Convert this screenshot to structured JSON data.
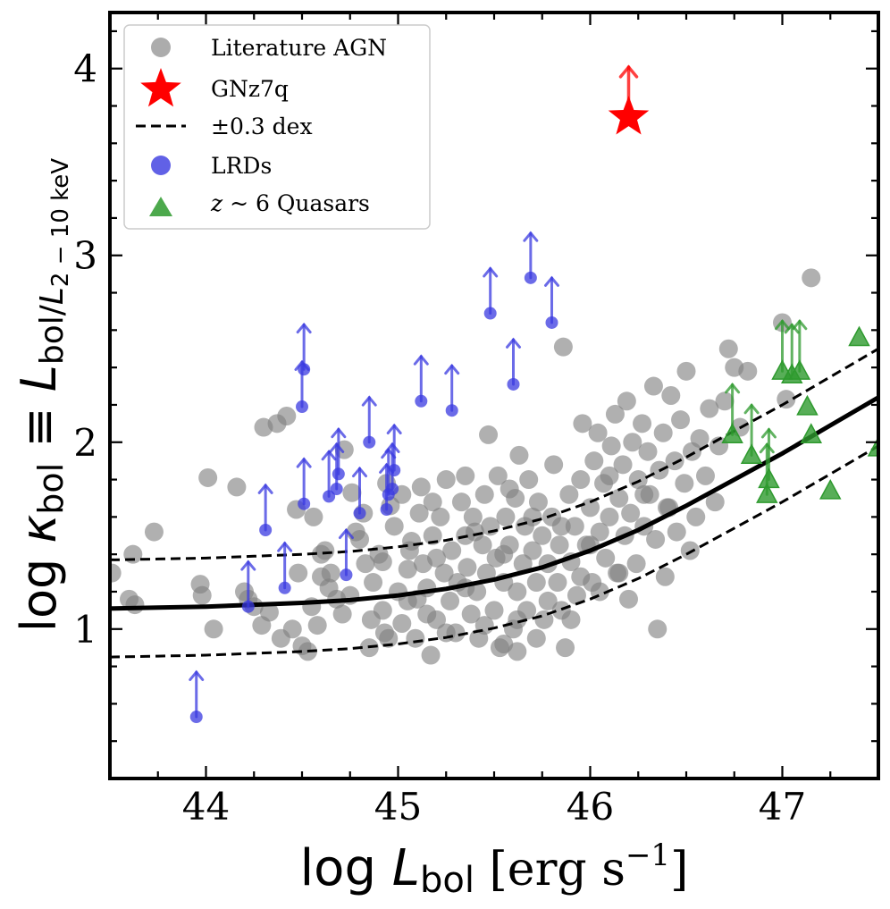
{
  "chart_data": {
    "type": "scatter",
    "xlabel": {
      "prefix": "log ",
      "var": "L",
      "sub": "bol",
      "units": " [erg s",
      "exp": "−1",
      "close": "]"
    },
    "ylabel": {
      "prefix": "log ",
      "var": "κ",
      "sub": "bol",
      "equiv": " ≡ ",
      "rvar": "L",
      "rsub": "bol/",
      "rsub2": "L",
      "rsub3": "2 − 10 keV"
    },
    "xlim": [
      43.5,
      47.5
    ],
    "ylim": [
      0.2,
      4.3
    ],
    "xticks": [
      44,
      45,
      46,
      47
    ],
    "yticks": [
      1,
      2,
      3,
      4
    ],
    "legend": {
      "position": "top-left",
      "entries": [
        {
          "label": "Literature AGN"
        },
        {
          "label": "GNz7q"
        },
        {
          "label": "±0.3 dex"
        },
        {
          "label": "LRDs"
        },
        {
          "label_italic": "z",
          "label_rest": " ~ 6 Quasars"
        }
      ]
    },
    "colors": {
      "literature_agn": "#808080",
      "gnz7q": "#ff0000",
      "lrds": "#3a3ae0",
      "quasars": "#2e9a2e",
      "relation": "#000000"
    },
    "relation": {
      "name": "kbol relation",
      "x": [
        43.5,
        43.75,
        44.0,
        44.25,
        44.5,
        44.75,
        45.0,
        45.25,
        45.5,
        45.75,
        46.0,
        46.25,
        46.5,
        46.75,
        47.0,
        47.25,
        47.5
      ],
      "y": [
        1.11,
        1.115,
        1.12,
        1.13,
        1.14,
        1.155,
        1.18,
        1.215,
        1.265,
        1.33,
        1.42,
        1.53,
        1.66,
        1.8,
        1.94,
        2.09,
        2.24
      ],
      "scatter_dex": 0.26
    },
    "series": [
      {
        "name": "Literature AGN",
        "marker": "circle",
        "points": [
          [
            43.51,
            1.3
          ],
          [
            43.62,
            1.4
          ],
          [
            43.6,
            1.16
          ],
          [
            43.63,
            1.13
          ],
          [
            43.73,
            1.52
          ],
          [
            43.97,
            1.24
          ],
          [
            43.98,
            1.18
          ],
          [
            44.04,
            1.0
          ],
          [
            44.01,
            1.81
          ],
          [
            44.16,
            1.76
          ],
          [
            44.2,
            1.2
          ],
          [
            44.22,
            1.16
          ],
          [
            44.25,
            1.12
          ],
          [
            44.29,
            1.02
          ],
          [
            44.33,
            1.09
          ],
          [
            44.3,
            2.08
          ],
          [
            44.37,
            2.1
          ],
          [
            44.42,
            2.14
          ],
          [
            44.39,
            0.95
          ],
          [
            44.45,
            1.0
          ],
          [
            44.5,
            0.91
          ],
          [
            44.53,
            0.88
          ],
          [
            44.47,
            1.64
          ],
          [
            44.56,
            1.6
          ],
          [
            44.62,
            1.42
          ],
          [
            44.6,
            1.28
          ],
          [
            44.65,
            1.3
          ],
          [
            44.68,
            1.16
          ],
          [
            44.71,
            1.08
          ],
          [
            44.64,
            1.22
          ],
          [
            44.72,
            1.96
          ],
          [
            44.76,
            1.73
          ],
          [
            44.8,
            1.48
          ],
          [
            44.83,
            1.35
          ],
          [
            44.86,
            1.05
          ],
          [
            44.87,
            1.25
          ],
          [
            44.9,
            1.4
          ],
          [
            44.93,
            0.98
          ],
          [
            44.94,
            1.78
          ],
          [
            44.96,
            1.66
          ],
          [
            44.98,
            1.55
          ],
          [
            45.0,
            1.2
          ],
          [
            45.02,
            1.03
          ],
          [
            45.05,
            1.32
          ],
          [
            45.07,
            1.47
          ],
          [
            45.09,
            0.95
          ],
          [
            45.1,
            1.16
          ],
          [
            45.11,
            1.62
          ],
          [
            45.12,
            1.76
          ],
          [
            45.13,
            1.35
          ],
          [
            45.15,
            1.22
          ],
          [
            45.17,
            0.86
          ],
          [
            45.18,
            1.5
          ],
          [
            45.2,
            1.05
          ],
          [
            45.22,
            1.6
          ],
          [
            45.24,
            1.3
          ],
          [
            45.25,
            1.8
          ],
          [
            45.27,
            1.15
          ],
          [
            45.28,
            1.42
          ],
          [
            45.3,
            0.98
          ],
          [
            45.31,
            1.25
          ],
          [
            45.33,
            1.68
          ],
          [
            45.35,
            1.5
          ],
          [
            45.36,
            1.33
          ],
          [
            45.38,
            1.08
          ],
          [
            45.39,
            1.6
          ],
          [
            45.41,
            1.2
          ],
          [
            45.42,
            0.95
          ],
          [
            45.44,
            1.45
          ],
          [
            45.45,
            1.72
          ],
          [
            45.46,
            1.3
          ],
          [
            45.47,
            2.04
          ],
          [
            45.48,
            1.55
          ],
          [
            45.5,
            1.1
          ],
          [
            45.51,
            1.38
          ],
          [
            45.52,
            1.82
          ],
          [
            45.53,
            0.9
          ],
          [
            45.55,
            1.25
          ],
          [
            45.56,
            1.6
          ],
          [
            45.58,
            1.45
          ],
          [
            45.6,
            1.0
          ],
          [
            45.61,
            1.7
          ],
          [
            45.62,
            1.2
          ],
          [
            45.63,
            1.93
          ],
          [
            45.65,
            1.35
          ],
          [
            45.66,
            1.55
          ],
          [
            45.67,
            1.1
          ],
          [
            45.68,
            1.8
          ],
          [
            45.7,
            1.42
          ],
          [
            45.72,
            1.25
          ],
          [
            45.73,
            1.68
          ],
          [
            45.75,
            1.5
          ],
          [
            45.76,
            1.05
          ],
          [
            45.78,
            1.35
          ],
          [
            45.8,
            1.6
          ],
          [
            45.81,
            1.88
          ],
          [
            45.83,
            1.25
          ],
          [
            45.84,
            1.45
          ],
          [
            45.86,
            2.51
          ],
          [
            45.87,
            0.9
          ],
          [
            45.89,
            1.72
          ],
          [
            45.9,
            1.36
          ],
          [
            45.92,
            1.55
          ],
          [
            45.93,
            1.18
          ],
          [
            45.95,
            1.8
          ],
          [
            45.96,
            2.1
          ],
          [
            45.98,
            1.45
          ],
          [
            46.0,
            1.65
          ],
          [
            46.01,
            1.25
          ],
          [
            46.02,
            1.9
          ],
          [
            46.04,
            2.05
          ],
          [
            46.05,
            1.52
          ],
          [
            46.07,
            1.78
          ],
          [
            46.08,
            1.38
          ],
          [
            46.1,
            1.6
          ],
          [
            46.11,
            1.98
          ],
          [
            46.13,
            2.15
          ],
          [
            46.14,
            1.3
          ],
          [
            46.15,
            1.7
          ],
          [
            46.17,
            1.88
          ],
          [
            46.18,
            1.5
          ],
          [
            46.19,
            2.22
          ],
          [
            46.21,
            1.62
          ],
          [
            46.22,
            2.0
          ],
          [
            46.24,
            1.35
          ],
          [
            46.25,
            1.8
          ],
          [
            46.27,
            2.1
          ],
          [
            46.28,
            1.55
          ],
          [
            46.3,
            1.95
          ],
          [
            46.31,
            1.72
          ],
          [
            46.33,
            2.3
          ],
          [
            46.34,
            1.48
          ],
          [
            46.36,
            1.85
          ],
          [
            46.38,
            2.05
          ],
          [
            46.39,
            1.28
          ],
          [
            46.41,
            1.65
          ],
          [
            46.42,
            2.25
          ],
          [
            46.44,
            1.9
          ],
          [
            46.45,
            1.52
          ],
          [
            46.47,
            2.12
          ],
          [
            46.49,
            1.78
          ],
          [
            46.5,
            2.38
          ],
          [
            46.52,
            1.42
          ],
          [
            46.53,
            1.95
          ],
          [
            46.55,
            1.6
          ],
          [
            46.57,
            2.02
          ],
          [
            46.6,
            1.82
          ],
          [
            46.62,
            2.18
          ],
          [
            46.65,
            1.68
          ],
          [
            46.67,
            1.98
          ],
          [
            46.7,
            2.22
          ],
          [
            46.72,
            2.5
          ],
          [
            46.75,
            2.4
          ],
          [
            46.78,
            2.08
          ],
          [
            46.82,
            2.38
          ],
          [
            47.0,
            2.64
          ],
          [
            47.02,
            2.23
          ],
          [
            47.15,
            2.88
          ],
          [
            46.2,
            1.16
          ],
          [
            46.35,
            1.0
          ],
          [
            46.15,
            1.3
          ],
          [
            46.05,
            1.2
          ],
          [
            45.95,
            1.28
          ],
          [
            45.85,
            1.1
          ],
          [
            45.72,
            0.95
          ],
          [
            45.62,
            0.88
          ],
          [
            45.55,
            0.92
          ],
          [
            44.85,
            0.9
          ],
          [
            44.95,
            0.95
          ],
          [
            45.25,
            0.98
          ],
          [
            44.55,
            1.12
          ],
          [
            44.75,
            1.18
          ],
          [
            44.92,
            1.1
          ],
          [
            45.05,
            1.15
          ],
          [
            45.15,
            1.08
          ],
          [
            45.35,
            1.22
          ],
          [
            45.45,
            1.02
          ],
          [
            45.62,
            1.05
          ],
          [
            45.78,
            1.15
          ],
          [
            45.9,
            1.05
          ],
          [
            44.6,
            1.4
          ],
          [
            44.78,
            1.52
          ],
          [
            44.92,
            1.36
          ],
          [
            45.06,
            1.42
          ],
          [
            45.2,
            1.38
          ],
          [
            45.4,
            1.52
          ],
          [
            45.55,
            1.4
          ],
          [
            45.7,
            1.6
          ],
          [
            45.85,
            1.55
          ],
          [
            46.0,
            1.45
          ],
          [
            44.48,
            1.3
          ],
          [
            44.58,
            1.02
          ],
          [
            44.82,
            1.62
          ],
          [
            45.02,
            1.72
          ],
          [
            45.18,
            1.68
          ],
          [
            45.35,
            1.82
          ],
          [
            45.58,
            1.75
          ],
          [
            46.1,
            1.82
          ],
          [
            46.28,
            1.72
          ],
          [
            46.4,
            1.65
          ]
        ]
      },
      {
        "name": "GNz7q",
        "marker": "star",
        "lower_limit": true,
        "points": [
          [
            46.2,
            3.74
          ]
        ]
      },
      {
        "name": "LRDs",
        "marker": "circle",
        "lower_limit": true,
        "points": [
          [
            43.95,
            0.53
          ],
          [
            44.22,
            1.12
          ],
          [
            44.31,
            1.53
          ],
          [
            44.41,
            1.22
          ],
          [
            44.5,
            2.19
          ],
          [
            44.51,
            2.39
          ],
          [
            44.51,
            1.67
          ],
          [
            44.64,
            1.71
          ],
          [
            44.68,
            1.75
          ],
          [
            44.69,
            1.83
          ],
          [
            44.73,
            1.29
          ],
          [
            44.8,
            1.62
          ],
          [
            44.85,
            2.0
          ],
          [
            44.94,
            1.64
          ],
          [
            44.95,
            1.72
          ],
          [
            44.97,
            1.75
          ],
          [
            44.98,
            1.85
          ],
          [
            45.12,
            2.22
          ],
          [
            45.28,
            2.17
          ],
          [
            45.48,
            2.69
          ],
          [
            45.6,
            2.31
          ],
          [
            45.69,
            2.88
          ],
          [
            45.8,
            2.64
          ]
        ]
      },
      {
        "name": "z ~ 6 Quasars",
        "marker": "triangle",
        "lower_limit_indices": [
          0,
          1,
          2,
          3,
          4,
          5,
          6
        ],
        "points": [
          [
            46.74,
            2.04
          ],
          [
            46.84,
            1.93
          ],
          [
            46.92,
            1.72
          ],
          [
            46.93,
            1.8
          ],
          [
            47.0,
            2.38
          ],
          [
            47.05,
            2.36
          ],
          [
            47.09,
            2.38
          ],
          [
            47.13,
            2.19
          ],
          [
            47.15,
            2.04
          ],
          [
            47.25,
            1.74
          ],
          [
            47.4,
            2.56
          ],
          [
            47.5,
            1.97
          ]
        ]
      }
    ]
  }
}
